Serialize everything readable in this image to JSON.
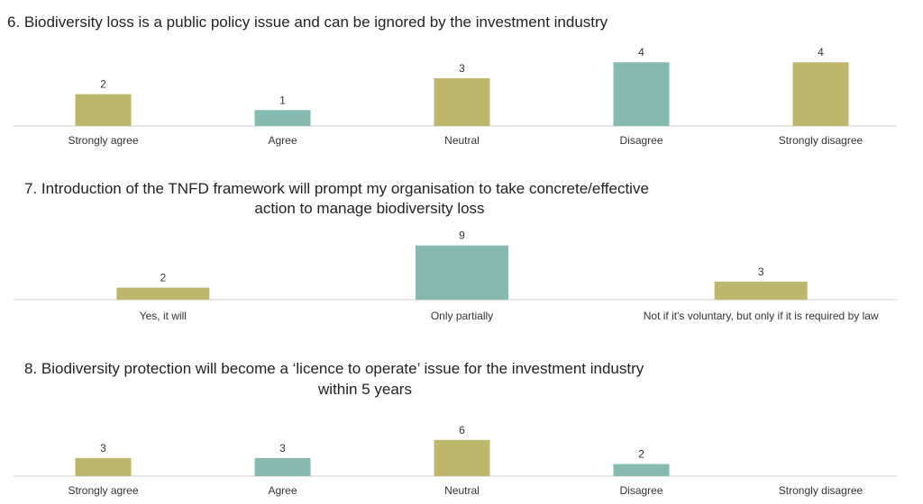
{
  "chart_data": [
    {
      "type": "bar",
      "title": [
        "6. Biodiversity loss is a public policy issue and can be ignored by the investment industry"
      ],
      "categories": [
        "Strongly agree",
        "Agree",
        "Neutral",
        "Disagree",
        "Strongly disagree"
      ],
      "values": [
        2,
        1,
        3,
        4,
        4
      ],
      "colors": [
        "#bdb76b",
        "#86b9b0",
        "#bdb76b",
        "#86b9b0",
        "#bdb76b"
      ]
    },
    {
      "type": "bar",
      "title": [
        "7. Introduction of the TNFD framework will prompt my organisation to take concrete/effective",
        "action to manage biodiversity loss"
      ],
      "categories": [
        "Yes, it will",
        "Only partially",
        "Not if it's voluntary,  but only if it is required by law"
      ],
      "values": [
        2,
        9,
        3
      ],
      "colors": [
        "#bdb76b",
        "#86b9b0",
        "#bdb76b"
      ]
    },
    {
      "type": "bar",
      "title": [
        "8. Biodiversity protection will become a ‘licence to operate’ issue for the investment industry",
        "within 5 years"
      ],
      "categories": [
        "Strongly agree",
        "Agree",
        "Neutral",
        "Disagree",
        "Strongly disagree"
      ],
      "values": [
        3,
        3,
        6,
        2,
        null
      ],
      "colors": [
        "#bdb76b",
        "#86b9b0",
        "#bdb76b",
        "#86b9b0",
        "#bdb76b"
      ]
    }
  ]
}
